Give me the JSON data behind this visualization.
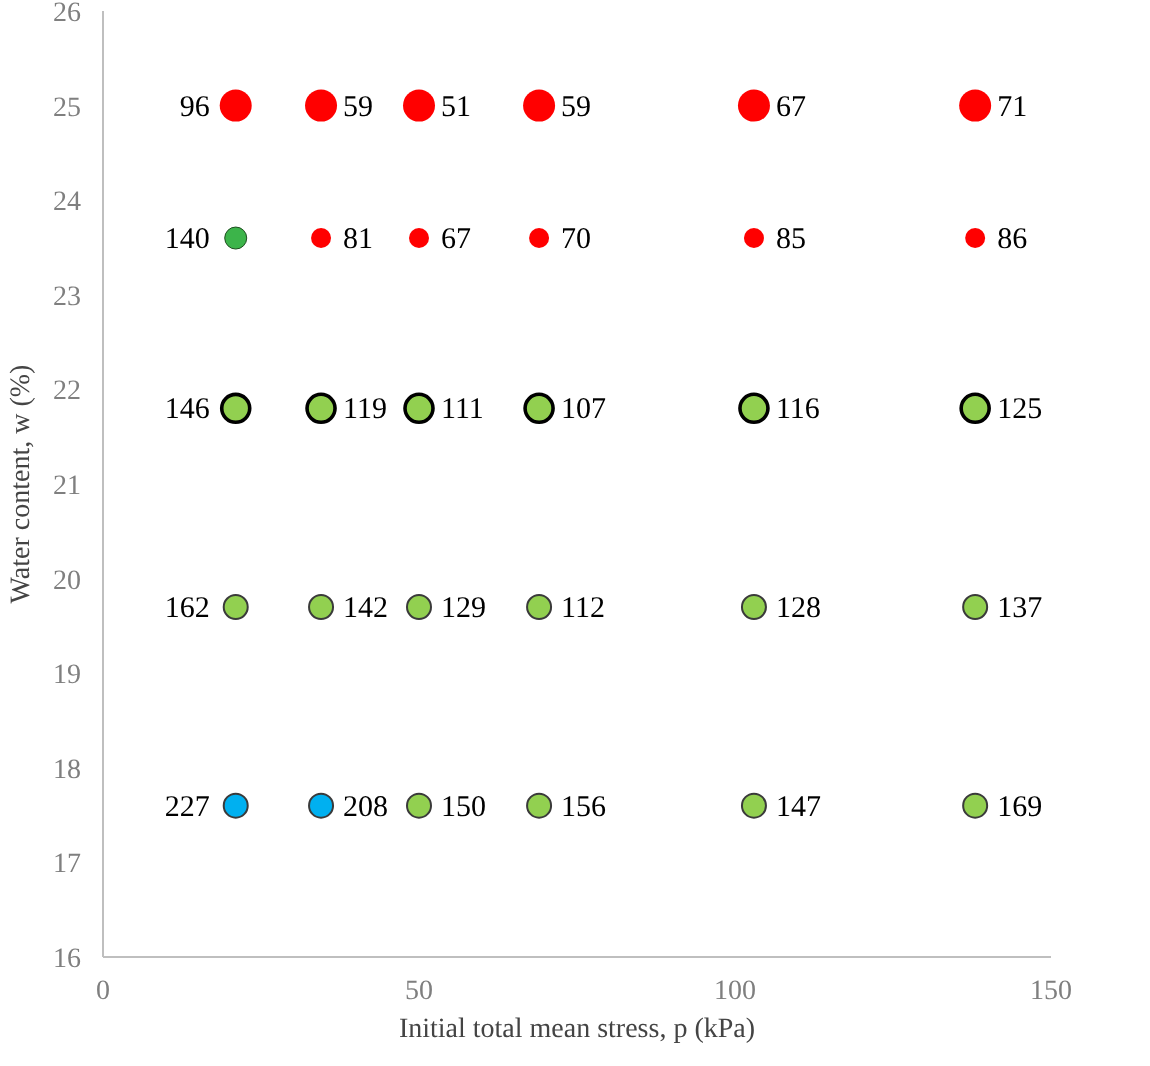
{
  "chart_data": {
    "type": "scatter",
    "xlabel": "Initial total mean stress, p (kPa)",
    "ylabel": "Water content, w (%)",
    "xlim": [
      0,
      150
    ],
    "xticks": [
      0,
      50,
      100,
      150
    ],
    "ylim": [
      16,
      26
    ],
    "yticks": [
      16,
      17,
      18,
      19,
      20,
      21,
      22,
      23,
      24,
      25,
      26
    ],
    "grid": false,
    "marker": "circle",
    "series": [
      {
        "color": "#ff0000",
        "x": [
          21,
          34.5,
          50,
          69,
          103,
          138
        ],
        "values": [
          25,
          25,
          25,
          25,
          25,
          25
        ]
      },
      {
        "color": "#ff0000",
        "x": [
          34.5,
          50,
          69,
          103,
          138
        ],
        "values": [
          23.6,
          23.6,
          23.6,
          23.6,
          23.6
        ]
      },
      {
        "color": "#3cb44a",
        "x": [
          21
        ],
        "values": [
          23.6
        ]
      },
      {
        "color": "#92d050",
        "x": [
          21,
          34.5,
          50,
          69,
          103,
          138
        ],
        "values": [
          21.8,
          21.8,
          21.8,
          21.8,
          21.8,
          21.8
        ]
      },
      {
        "color": "#92d050",
        "x": [
          21,
          34.5,
          50,
          69,
          103,
          138,
          50,
          69,
          103,
          138
        ],
        "values": [
          19.7,
          19.7,
          19.7,
          19.7,
          19.7,
          19.7,
          17.6,
          17.6,
          17.6,
          17.6
        ]
      },
      {
        "color": "#00b0f0",
        "x": [
          21,
          34.5
        ],
        "values": [
          17.6,
          17.6
        ]
      }
    ],
    "annotations": [
      {
        "text": "96",
        "x": 21,
        "y": 25
      },
      {
        "text": "59",
        "x": 34.5,
        "y": 25
      },
      {
        "text": "51",
        "x": 50,
        "y": 25
      },
      {
        "text": "59",
        "x": 69,
        "y": 25
      },
      {
        "text": "67",
        "x": 103,
        "y": 25
      },
      {
        "text": "71",
        "x": 138,
        "y": 25
      },
      {
        "text": "140",
        "x": 21,
        "y": 23.6
      },
      {
        "text": "81",
        "x": 34.5,
        "y": 23.6
      },
      {
        "text": "67",
        "x": 50,
        "y": 23.6
      },
      {
        "text": "70",
        "x": 69,
        "y": 23.6
      },
      {
        "text": "85",
        "x": 103,
        "y": 23.6
      },
      {
        "text": "86",
        "x": 138,
        "y": 23.6
      },
      {
        "text": "146",
        "x": 21,
        "y": 21.8
      },
      {
        "text": "119",
        "x": 34.5,
        "y": 21.8
      },
      {
        "text": "111",
        "x": 50,
        "y": 21.8
      },
      {
        "text": "107",
        "x": 69,
        "y": 21.8
      },
      {
        "text": "116",
        "x": 103,
        "y": 21.8
      },
      {
        "text": "125",
        "x": 138,
        "y": 21.8
      },
      {
        "text": "162",
        "x": 21,
        "y": 19.7
      },
      {
        "text": "142",
        "x": 34.5,
        "y": 19.7
      },
      {
        "text": "129",
        "x": 50,
        "y": 19.7
      },
      {
        "text": "112",
        "x": 69,
        "y": 19.7
      },
      {
        "text": "128",
        "x": 103,
        "y": 19.7
      },
      {
        "text": "137",
        "x": 138,
        "y": 19.7
      },
      {
        "text": "227",
        "x": 21,
        "y": 17.6
      },
      {
        "text": "208",
        "x": 34.5,
        "y": 17.6
      },
      {
        "text": "150",
        "x": 50,
        "y": 17.6
      },
      {
        "text": "156",
        "x": 69,
        "y": 17.6
      },
      {
        "text": "147",
        "x": 103,
        "y": 17.6
      },
      {
        "text": "169",
        "x": 138,
        "y": 17.6
      }
    ]
  }
}
